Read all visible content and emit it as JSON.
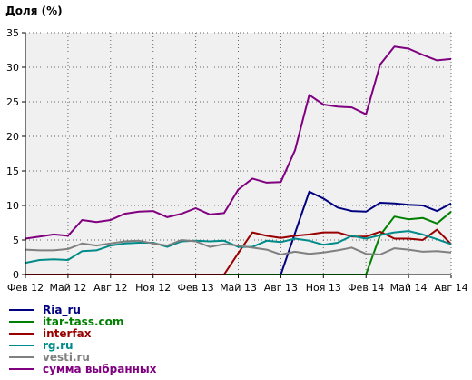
{
  "chart_data": {
    "type": "line",
    "ylabel": "Доля (%)",
    "ylim": [
      0,
      35
    ],
    "yticks": [
      0,
      5,
      10,
      15,
      20,
      25,
      30,
      35
    ],
    "xlim": [
      0,
      30
    ],
    "xticks": [
      {
        "label": "Фев 12",
        "x": 0
      },
      {
        "label": "Май 12",
        "x": 3
      },
      {
        "label": "Авг 12",
        "x": 6
      },
      {
        "label": "Ноя 12",
        "x": 9
      },
      {
        "label": "Фев 13",
        "x": 12
      },
      {
        "label": "Май 13",
        "x": 15
      },
      {
        "label": "Авг 13",
        "x": 18
      },
      {
        "label": "Ноя 13",
        "x": 21
      },
      {
        "label": "Фев 14",
        "x": 24
      },
      {
        "label": "Май 14",
        "x": 27
      },
      {
        "label": "Авг 14",
        "x": 30
      }
    ],
    "grid": true,
    "background": "#f0f0f0",
    "legend_position": "bottom",
    "series": [
      {
        "name": "Ria_ru",
        "color": "#000080",
        "values": [
          0,
          0,
          0,
          0,
          0,
          0,
          0,
          0,
          0,
          0,
          0,
          0,
          0,
          0,
          0,
          0,
          0,
          0,
          0,
          6,
          12,
          11,
          9.7,
          9.2,
          9.1,
          10.4,
          10.3,
          10.1,
          10,
          9.2,
          10.3
        ]
      },
      {
        "name": "itar-tass.com",
        "color": "#008000",
        "values": [
          0,
          0,
          0,
          0,
          0,
          0,
          0,
          0,
          0,
          0,
          0,
          0,
          0,
          0,
          0,
          0,
          0,
          0,
          0,
          0,
          0,
          0,
          0,
          0,
          0,
          5.7,
          8.4,
          8,
          8.2,
          7.4,
          9.1
        ]
      },
      {
        "name": "interfax",
        "color": "#990000",
        "values": [
          0,
          0,
          0,
          0,
          0,
          0,
          0,
          0,
          0,
          0,
          0,
          0,
          0,
          0,
          0,
          3.1,
          6.1,
          5.6,
          5.3,
          5.6,
          5.8,
          6.1,
          6.1,
          5.5,
          5.5,
          6.2,
          5.2,
          5.2,
          5,
          6.5,
          4.4
        ]
      },
      {
        "name": "rg.ru",
        "color": "#008b8b",
        "values": [
          1.7,
          2.1,
          2.2,
          2.1,
          3.4,
          3.5,
          4.2,
          4.5,
          4.6,
          4.6,
          4,
          4.8,
          4.9,
          4.8,
          4.9,
          4,
          4,
          4.9,
          4.7,
          5.2,
          4.9,
          4.3,
          4.6,
          5.6,
          5.2,
          5.7,
          6.1,
          6.3,
          5.8,
          5.1,
          4.4
        ]
      },
      {
        "name": "vesti.ru",
        "color": "#808080",
        "values": [
          3.6,
          3.5,
          3.5,
          3.7,
          4.5,
          4.2,
          4.5,
          4.8,
          4.9,
          4.5,
          4.2,
          5,
          4.8,
          4,
          4.4,
          4.2,
          3.9,
          3.6,
          2.9,
          3.3,
          3,
          3.2,
          3.5,
          3.9,
          3,
          2.9,
          3.8,
          3.6,
          3.3,
          3.4,
          3.2
        ]
      },
      {
        "name": "сумма выбранных",
        "color": "#800080",
        "values": [
          5.2,
          5.5,
          5.8,
          5.6,
          7.9,
          7.6,
          7.9,
          8.8,
          9.1,
          9.2,
          8.3,
          8.8,
          9.6,
          8.7,
          8.9,
          12.3,
          13.9,
          13.3,
          13.4,
          18,
          26,
          24.6,
          24.3,
          24.2,
          23.2,
          30.4,
          33,
          32.7,
          31.8,
          31,
          31.2
        ]
      }
    ]
  }
}
